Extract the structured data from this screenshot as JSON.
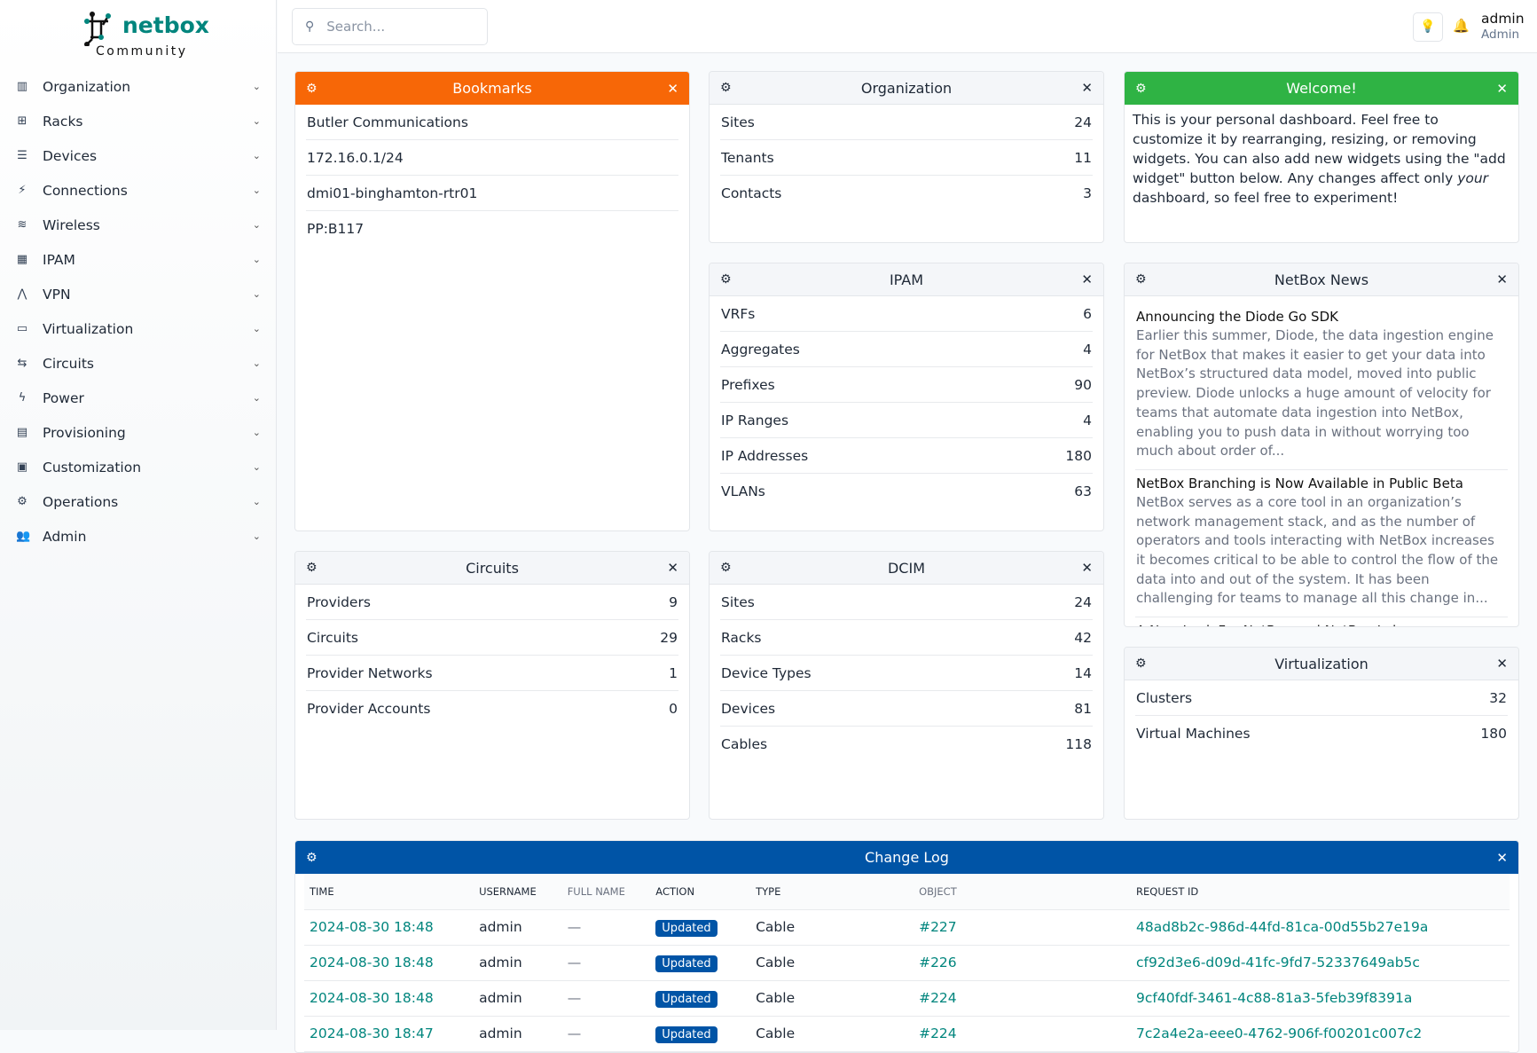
{
  "brand": {
    "name": "netbox",
    "edition": "Community",
    "color": "#00857d"
  },
  "sidebar": {
    "items": [
      {
        "label": "Organization",
        "icon": "building-icon"
      },
      {
        "label": "Racks",
        "icon": "rack-icon"
      },
      {
        "label": "Devices",
        "icon": "server-icon"
      },
      {
        "label": "Connections",
        "icon": "plug-icon"
      },
      {
        "label": "Wireless",
        "icon": "wifi-icon"
      },
      {
        "label": "IPAM",
        "icon": "counter-icon"
      },
      {
        "label": "VPN",
        "icon": "tunnel-icon"
      },
      {
        "label": "Virtualization",
        "icon": "monitor-icon"
      },
      {
        "label": "Circuits",
        "icon": "transit-icon"
      },
      {
        "label": "Power",
        "icon": "flash-icon"
      },
      {
        "label": "Provisioning",
        "icon": "file-document-icon"
      },
      {
        "label": "Customization",
        "icon": "toolbox-icon"
      },
      {
        "label": "Operations",
        "icon": "cogs-icon"
      },
      {
        "label": "Admin",
        "icon": "users-icon"
      }
    ]
  },
  "header": {
    "search_placeholder": "Search...",
    "user": "admin",
    "role": "Admin"
  },
  "widgets": {
    "bookmarks": {
      "title": "Bookmarks",
      "color": "#f76707",
      "items": [
        "Butler Communications",
        "172.16.0.1/24",
        "dmi01-binghamton-rtr01",
        "PP:B117"
      ]
    },
    "organization": {
      "title": "Organization",
      "rows": [
        {
          "label": "Sites",
          "value": "24"
        },
        {
          "label": "Tenants",
          "value": "11"
        },
        {
          "label": "Contacts",
          "value": "3"
        }
      ]
    },
    "welcome": {
      "title": "Welcome!",
      "color": "#2fb344",
      "text_before": "This is your personal dashboard. Feel free to customize it by rearranging, resizing, or removing widgets. You can also add new widgets using the \"add widget\" button below. Any changes affect only ",
      "text_em": "your",
      "text_after": " dashboard, so feel free to experiment!"
    },
    "ipam": {
      "title": "IPAM",
      "rows": [
        {
          "label": "VRFs",
          "value": "6"
        },
        {
          "label": "Aggregates",
          "value": "4"
        },
        {
          "label": "Prefixes",
          "value": "90"
        },
        {
          "label": "IP Ranges",
          "value": "4"
        },
        {
          "label": "IP Addresses",
          "value": "180"
        },
        {
          "label": "VLANs",
          "value": "63"
        }
      ]
    },
    "news": {
      "title": "NetBox News",
      "items": [
        {
          "title": "Announcing the Diode Go SDK",
          "desc": "Earlier this summer, Diode, the data ingestion engine for NetBox that makes it easier to get your data into NetBox’s structured data model, moved into public preview. Diode unlocks a huge amount of velocity for teams that automate data ingestion into NetBox, enabling you to push data in without worrying too much about order of..."
        },
        {
          "title": "NetBox Branching is Now Available in Public Beta",
          "desc": "NetBox serves as a core tool in an organization’s network management stack, and as the number of operators and tools interacting with NetBox increases it becomes critical to be able to control the flow of the data into and out of the system. It has been challenging for teams to manage all this change in..."
        },
        {
          "title": "A New Look For NetBox and NetBox Labs",
          "desc": ""
        }
      ]
    },
    "circuits": {
      "title": "Circuits",
      "rows": [
        {
          "label": "Providers",
          "value": "9"
        },
        {
          "label": "Circuits",
          "value": "29"
        },
        {
          "label": "Provider Networks",
          "value": "1"
        },
        {
          "label": "Provider Accounts",
          "value": "0"
        }
      ]
    },
    "dcim": {
      "title": "DCIM",
      "rows": [
        {
          "label": "Sites",
          "value": "24"
        },
        {
          "label": "Racks",
          "value": "42"
        },
        {
          "label": "Device Types",
          "value": "14"
        },
        {
          "label": "Devices",
          "value": "81"
        },
        {
          "label": "Cables",
          "value": "118"
        }
      ]
    },
    "virtualization": {
      "title": "Virtualization",
      "rows": [
        {
          "label": "Clusters",
          "value": "32"
        },
        {
          "label": "Virtual Machines",
          "value": "180"
        }
      ]
    },
    "changelog": {
      "title": "Change Log",
      "color": "#0054a6",
      "columns": [
        "TIME",
        "USERNAME",
        "FULL NAME",
        "ACTION",
        "TYPE",
        "OBJECT",
        "REQUEST ID"
      ],
      "rows": [
        {
          "time": "2024-08-30 18:48",
          "username": "admin",
          "full_name": "—",
          "action": "Updated",
          "type": "Cable",
          "object": "#227",
          "request_id": "48ad8b2c-986d-44fd-81ca-00d55b27e19a"
        },
        {
          "time": "2024-08-30 18:48",
          "username": "admin",
          "full_name": "—",
          "action": "Updated",
          "type": "Cable",
          "object": "#226",
          "request_id": "cf92d3e6-d09d-41fc-9fd7-52337649ab5c"
        },
        {
          "time": "2024-08-30 18:48",
          "username": "admin",
          "full_name": "—",
          "action": "Updated",
          "type": "Cable",
          "object": "#224",
          "request_id": "9cf40fdf-3461-4c88-81a3-5feb39f8391a"
        },
        {
          "time": "2024-08-30 18:47",
          "username": "admin",
          "full_name": "—",
          "action": "Updated",
          "type": "Cable",
          "object": "#224",
          "request_id": "7c2a4e2a-eee0-4762-906f-f00201c007c2"
        }
      ]
    }
  }
}
